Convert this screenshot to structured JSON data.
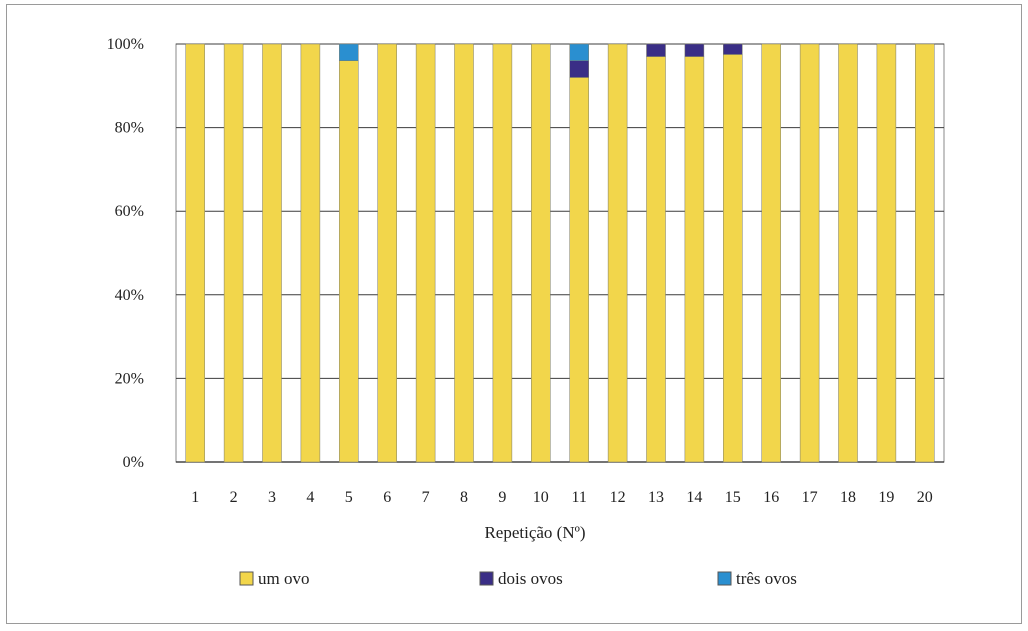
{
  "chart_data": {
    "type": "bar",
    "stacked": true,
    "percent": true,
    "categories": [
      "1",
      "2",
      "3",
      "4",
      "5",
      "6",
      "7",
      "8",
      "9",
      "10",
      "11",
      "12",
      "13",
      "14",
      "15",
      "16",
      "17",
      "18",
      "19",
      "20"
    ],
    "series": [
      {
        "name": "um ovo",
        "color": "#F2D64B",
        "values": [
          100,
          100,
          100,
          100,
          96,
          100,
          100,
          100,
          100,
          100,
          92,
          100,
          97,
          97,
          97.5,
          100,
          100,
          100,
          100,
          100
        ]
      },
      {
        "name": "dois ovos",
        "color": "#3A2E86",
        "values": [
          0,
          0,
          0,
          0,
          0,
          0,
          0,
          0,
          0,
          0,
          4,
          0,
          3,
          3,
          2.5,
          0,
          0,
          0,
          0,
          0
        ]
      },
      {
        "name": "três ovos",
        "color": "#2A8FD0",
        "values": [
          0,
          0,
          0,
          0,
          4,
          0,
          0,
          0,
          0,
          0,
          4,
          0,
          0,
          0,
          0,
          0,
          0,
          0,
          0,
          0
        ]
      }
    ],
    "y_ticks": [
      "0%",
      "20%",
      "40%",
      "60%",
      "80%",
      "100%"
    ],
    "ylim": [
      0,
      100
    ],
    "xlabel": "Repetição (Nº)",
    "ylabel": "",
    "grid": true,
    "legend_position": "bottom"
  }
}
